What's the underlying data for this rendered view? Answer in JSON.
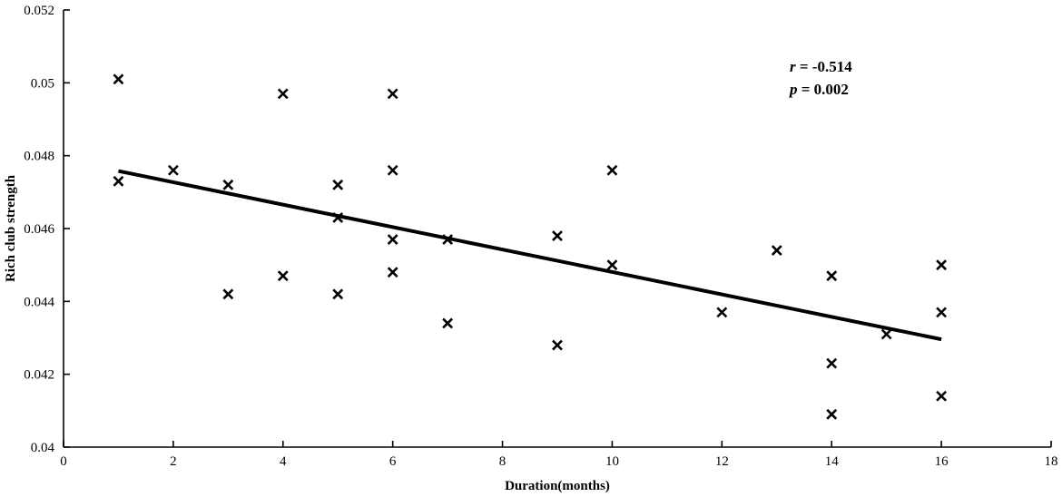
{
  "chart_data": {
    "type": "scatter",
    "title": "",
    "xlabel": "Duration(months)",
    "ylabel": "Rich club strength",
    "xlim": [
      0,
      18
    ],
    "ylim": [
      0.04,
      0.052
    ],
    "x_ticks": [
      "0",
      "2",
      "4",
      "6",
      "8",
      "10",
      "12",
      "14",
      "16",
      "18"
    ],
    "y_ticks": [
      "0.04",
      "0.042",
      "0.044",
      "0.046",
      "0.048",
      "0.05",
      "0.052"
    ],
    "grid": false,
    "marker": "x",
    "points": [
      {
        "x": 1,
        "y": 0.0501
      },
      {
        "x": 1,
        "y": 0.0473
      },
      {
        "x": 2,
        "y": 0.0476
      },
      {
        "x": 3,
        "y": 0.0472
      },
      {
        "x": 3,
        "y": 0.0442
      },
      {
        "x": 4,
        "y": 0.0497
      },
      {
        "x": 4,
        "y": 0.0447
      },
      {
        "x": 5,
        "y": 0.0472
      },
      {
        "x": 5,
        "y": 0.0463
      },
      {
        "x": 5,
        "y": 0.0442
      },
      {
        "x": 6,
        "y": 0.0497
      },
      {
        "x": 6,
        "y": 0.0476
      },
      {
        "x": 6,
        "y": 0.0457
      },
      {
        "x": 6,
        "y": 0.0448
      },
      {
        "x": 7,
        "y": 0.0457
      },
      {
        "x": 7,
        "y": 0.0434
      },
      {
        "x": 9,
        "y": 0.0458
      },
      {
        "x": 9,
        "y": 0.0428
      },
      {
        "x": 10,
        "y": 0.0476
      },
      {
        "x": 10,
        "y": 0.045
      },
      {
        "x": 12,
        "y": 0.0437
      },
      {
        "x": 13,
        "y": 0.0454
      },
      {
        "x": 14,
        "y": 0.0447
      },
      {
        "x": 14,
        "y": 0.0423
      },
      {
        "x": 14,
        "y": 0.0409
      },
      {
        "x": 15,
        "y": 0.0431
      },
      {
        "x": 16,
        "y": 0.045
      },
      {
        "x": 16,
        "y": 0.0437
      },
      {
        "x": 16,
        "y": 0.0414
      }
    ],
    "fit_line": {
      "x": [
        1,
        16
      ],
      "y": [
        0.04758,
        0.04296
      ]
    },
    "stats": {
      "r_symbol": "r",
      "r_text": " = -0.514",
      "p_symbol": "p",
      "p_text": " = 0.002"
    }
  }
}
